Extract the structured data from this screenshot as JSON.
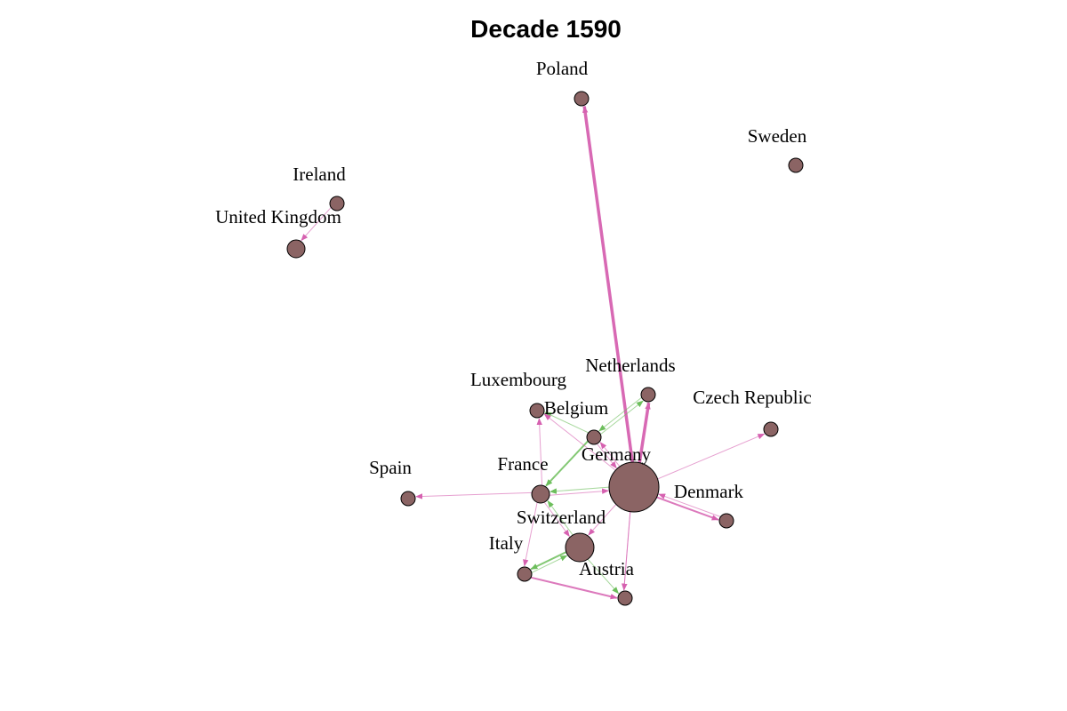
{
  "title": "Decade 1590",
  "colors": {
    "node_fill": "#8B6464",
    "node_stroke": "#000000",
    "edge_pink": "#D661B0",
    "edge_green": "#6DBE5C",
    "background": "#FFFFFF"
  },
  "nodes": [
    {
      "id": "poland",
      "label": "Poland"
    },
    {
      "id": "sweden",
      "label": "Sweden"
    },
    {
      "id": "ireland",
      "label": "Ireland"
    },
    {
      "id": "uk",
      "label": "United Kingdom"
    },
    {
      "id": "netherlands",
      "label": "Netherlands"
    },
    {
      "id": "luxembourg",
      "label": "Luxembourg"
    },
    {
      "id": "belgium",
      "label": "Belgium"
    },
    {
      "id": "czech",
      "label": "Czech Republic"
    },
    {
      "id": "germany",
      "label": "Germany"
    },
    {
      "id": "france",
      "label": "France"
    },
    {
      "id": "spain",
      "label": "Spain"
    },
    {
      "id": "denmark",
      "label": "Denmark"
    },
    {
      "id": "switzerland",
      "label": "Switzerland"
    },
    {
      "id": "italy",
      "label": "Italy"
    },
    {
      "id": "austria",
      "label": "Austria"
    },
    {
      "id": "node_se",
      "label": ""
    }
  ],
  "edges": [
    {
      "from": "germany",
      "to": "poland",
      "color": "pink",
      "strength": "strong"
    },
    {
      "from": "ireland",
      "to": "uk",
      "color": "pink",
      "strength": "light"
    },
    {
      "from": "germany",
      "to": "netherlands",
      "color": "pink",
      "strength": "strong"
    },
    {
      "from": "germany",
      "to": "czech",
      "color": "pink",
      "strength": "light"
    },
    {
      "from": "germany",
      "to": "denmark",
      "color": "pink",
      "strength": "medium"
    },
    {
      "from": "denmark",
      "to": "germany",
      "color": "pink",
      "strength": "light"
    },
    {
      "from": "germany",
      "to": "france",
      "color": "green",
      "strength": "light"
    },
    {
      "from": "france",
      "to": "germany",
      "color": "pink",
      "strength": "light"
    },
    {
      "from": "germany",
      "to": "node_se",
      "color": "pink",
      "strength": "light"
    },
    {
      "from": "germany",
      "to": "switzerland",
      "color": "pink",
      "strength": "light"
    },
    {
      "from": "germany",
      "to": "belgium",
      "color": "pink",
      "strength": "light"
    },
    {
      "from": "belgium",
      "to": "germany",
      "color": "pink",
      "strength": "light"
    },
    {
      "from": "belgium",
      "to": "netherlands",
      "color": "green",
      "strength": "light"
    },
    {
      "from": "netherlands",
      "to": "belgium",
      "color": "green",
      "strength": "light"
    },
    {
      "from": "belgium",
      "to": "luxembourg",
      "color": "green",
      "strength": "light"
    },
    {
      "from": "belgium",
      "to": "france",
      "color": "green",
      "strength": "medium"
    },
    {
      "from": "germany",
      "to": "luxembourg",
      "color": "pink",
      "strength": "light"
    },
    {
      "from": "france",
      "to": "spain",
      "color": "pink",
      "strength": "light"
    },
    {
      "from": "france",
      "to": "luxembourg",
      "color": "pink",
      "strength": "light"
    },
    {
      "from": "france",
      "to": "italy",
      "color": "pink",
      "strength": "light"
    },
    {
      "from": "france",
      "to": "switzerland",
      "color": "pink",
      "strength": "light"
    },
    {
      "from": "switzerland",
      "to": "france",
      "color": "green",
      "strength": "light"
    },
    {
      "from": "switzerland",
      "to": "italy",
      "color": "green",
      "strength": "medium"
    },
    {
      "from": "italy",
      "to": "switzerland",
      "color": "green",
      "strength": "light"
    },
    {
      "from": "italy",
      "to": "node_se",
      "color": "pink",
      "strength": "medium"
    },
    {
      "from": "switzerland",
      "to": "node_se",
      "color": "green",
      "strength": "light"
    },
    {
      "from": "germany",
      "to": "austria",
      "color": "pink",
      "strength": "light"
    }
  ]
}
